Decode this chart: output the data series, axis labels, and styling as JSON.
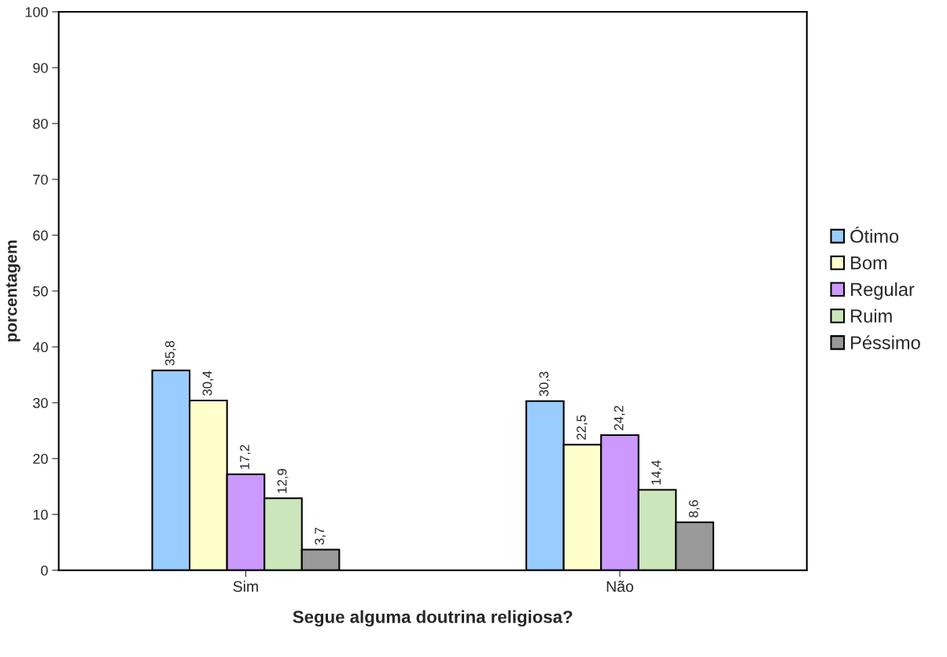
{
  "chart_data": {
    "type": "bar",
    "xlabel": "Segue alguma doutrina religiosa?",
    "ylabel": "porcentagem",
    "categories": [
      "Sim",
      "Não"
    ],
    "series": [
      {
        "name": "Ótimo",
        "color": "#99ccff",
        "values": [
          35.8,
          30.3
        ],
        "value_labels": [
          "35,8",
          "30,3"
        ]
      },
      {
        "name": "Bom",
        "color": "#ffffcc",
        "values": [
          30.4,
          22.5
        ],
        "value_labels": [
          "30,4",
          "22,5"
        ]
      },
      {
        "name": "Regular",
        "color": "#cc99ff",
        "values": [
          17.2,
          24.2
        ],
        "value_labels": [
          "17,2",
          "24,2"
        ]
      },
      {
        "name": "Ruim",
        "color": "#cce6bb",
        "values": [
          12.9,
          14.4
        ],
        "value_labels": [
          "12,9",
          "14,4"
        ]
      },
      {
        "name": "Péssimo",
        "color": "#999999",
        "values": [
          3.7,
          8.6
        ],
        "value_labels": [
          "3,7",
          "8,6"
        ]
      }
    ],
    "ylim": [
      0,
      100
    ],
    "yticks": [
      0,
      10,
      20,
      30,
      40,
      50,
      60,
      70,
      80,
      90,
      100
    ],
    "grid": false,
    "legend": "right"
  }
}
